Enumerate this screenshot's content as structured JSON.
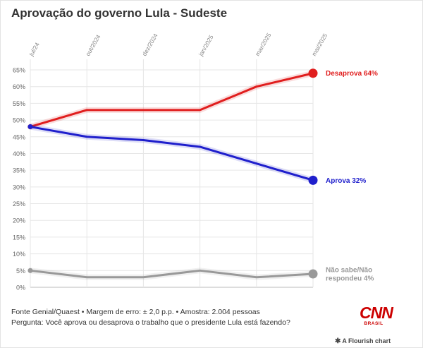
{
  "title": "Aprovação do governo Lula - Sudeste",
  "footer": {
    "source": "Fonte Genial/Quaest • Margem de erro: ± 2,0 p.p. • Amostra: 2.004 pessoas",
    "question": "Pergunta: Você aprova ou desaprova o trabalho que o presidente Lula está fazendo?"
  },
  "logo": {
    "name": "CNN",
    "sub": "BRASIL"
  },
  "credit": "A Flourish chart",
  "chart_data": {
    "type": "line",
    "x": [
      "jul/24",
      "out/2024",
      "dez/2024",
      "jan/2025",
      "mar/2025",
      "mai/2025"
    ],
    "ylim": [
      0,
      65
    ],
    "yticks": [
      "0%",
      "5%",
      "10%",
      "15%",
      "20%",
      "25%",
      "30%",
      "35%",
      "40%",
      "45%",
      "50%",
      "55%",
      "60%",
      "65%"
    ],
    "grid": true,
    "series": [
      {
        "key": "desaprova",
        "name": "Desaprova",
        "end_label": "Desaprova 64%",
        "color": "#e01e1e",
        "values": [
          48,
          53,
          53,
          53,
          60,
          64
        ]
      },
      {
        "key": "aprova",
        "name": "Aprova",
        "end_label": "Aprova 32%",
        "color": "#1f1fcc",
        "values": [
          48,
          45,
          44,
          42,
          37,
          32
        ]
      },
      {
        "key": "nao_sabe",
        "name": "Não sabe/Não respondeu",
        "end_label": "Não sabe/Não respondeu 4%",
        "end_label_lines": [
          "Não sabe/Não",
          "respondeu 4%"
        ],
        "color": "#999999",
        "values": [
          5,
          3,
          3,
          5,
          3,
          4
        ]
      }
    ]
  }
}
